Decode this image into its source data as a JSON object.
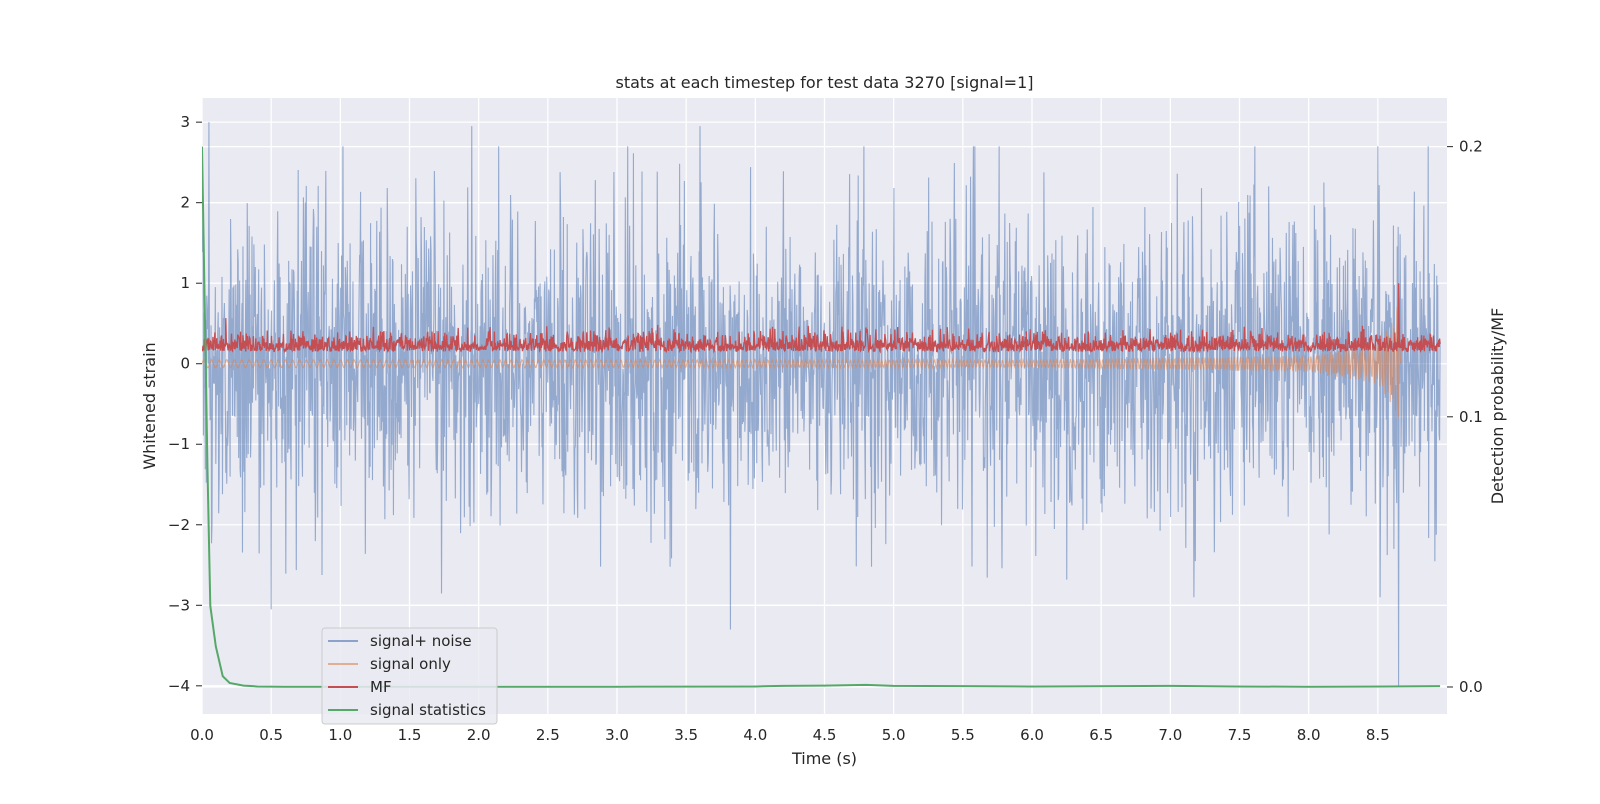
{
  "chart_data": {
    "type": "line",
    "title": "stats at each timestep for test data 3270 [signal=1]",
    "xlabel": "Time (s)",
    "ylabel": "Whitened strain",
    "y2label": "Detection probability/MF",
    "xlim": [
      0.0,
      9.0
    ],
    "ylim": [
      -4.35,
      3.3
    ],
    "y2lim": [
      -0.01,
      0.218
    ],
    "xticks": [
      "0.0",
      "0.5",
      "1.0",
      "1.5",
      "2.0",
      "2.5",
      "3.0",
      "3.5",
      "4.0",
      "4.5",
      "5.0",
      "5.5",
      "6.0",
      "6.5",
      "7.0",
      "7.5",
      "8.0",
      "8.5"
    ],
    "xtick_values": [
      0.0,
      0.5,
      1.0,
      1.5,
      2.0,
      2.5,
      3.0,
      3.5,
      4.0,
      4.5,
      5.0,
      5.5,
      6.0,
      6.5,
      7.0,
      7.5,
      8.0,
      8.5
    ],
    "yticks": [
      "3",
      "2",
      "1",
      "0",
      "−1",
      "−2",
      "−3",
      "−4"
    ],
    "ytick_values": [
      3,
      2,
      1,
      0,
      -1,
      -2,
      -3,
      -4
    ],
    "y2ticks": [
      "0.2",
      "0.1",
      "0.0"
    ],
    "y2tick_values": [
      0.2,
      0.1,
      0.0
    ],
    "grid": true,
    "legend_position": "lower-left",
    "series": [
      {
        "name": "signal+ noise",
        "axis": "left",
        "color": "#4c72b0",
        "description_values": "noise band approx -2.5 to 2.5, peaks near 3 and -4",
        "noise_band": [
          -2.4,
          2.4
        ],
        "notable_points": [
          [
            0.05,
            3.0
          ],
          [
            1.95,
            2.95
          ],
          [
            3.6,
            2.95
          ],
          [
            3.82,
            -3.3
          ],
          [
            0.5,
            -3.05
          ],
          [
            8.65,
            -4.0
          ],
          [
            8.5,
            2.7
          ]
        ]
      },
      {
        "name": "signal only",
        "axis": "left",
        "color": "#dd8452",
        "chirp_points": [
          [
            0.0,
            0.05
          ],
          [
            6.0,
            0.05
          ],
          [
            8.0,
            0.1
          ],
          [
            8.5,
            0.25
          ],
          [
            8.63,
            0.6
          ],
          [
            8.655,
            1.0
          ],
          [
            8.665,
            0.0
          ]
        ],
        "chirp_end": 8.665
      },
      {
        "name": "MF",
        "axis": "left",
        "color": "#c44e52",
        "band": [
          0.0,
          0.45
        ],
        "notable_points": [
          [
            8.65,
            1.0
          ]
        ]
      },
      {
        "name": "signal statistics",
        "axis": "right",
        "color": "#55a868",
        "x": [
          0.0,
          0.02,
          0.04,
          0.06,
          0.1,
          0.15,
          0.2,
          0.3,
          0.4,
          0.6,
          1.0,
          2.0,
          3.0,
          4.0,
          4.2,
          4.5,
          4.8,
          5.0,
          5.5,
          6.0,
          7.0,
          7.5,
          8.0,
          8.5,
          8.95
        ],
        "values": [
          0.2,
          0.14,
          0.08,
          0.03,
          0.015,
          0.004,
          0.0015,
          0.0005,
          0.0002,
          0.0001,
          0.0001,
          0.0001,
          0.0001,
          0.0002,
          0.0004,
          0.0005,
          0.0008,
          0.0004,
          0.0003,
          0.0002,
          0.0004,
          0.0002,
          0.0001,
          0.0002,
          0.0003
        ]
      }
    ]
  }
}
